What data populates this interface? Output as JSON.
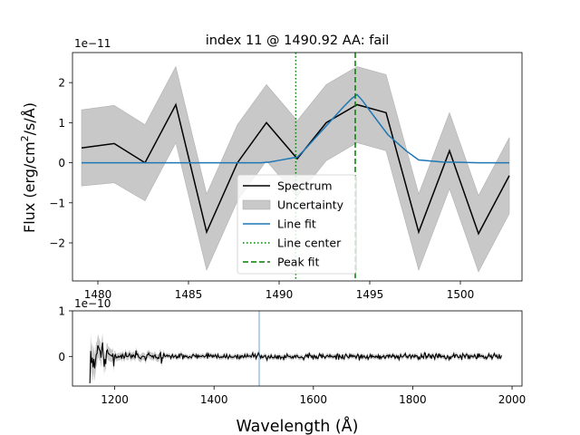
{
  "chart_data": [
    {
      "type": "line",
      "title": "index 11 @ 1490.92 AA: fail",
      "xlabel": "",
      "ylabel": "Flux (erg/cm$^2$/s/$\\AA$)",
      "ylabel_parts": {
        "pre": "Flux (erg/cm",
        "sup": "2",
        "post": "/s/Å)"
      },
      "offset_text": "1e−11",
      "xlim": [
        1478.6,
        1503.4
      ],
      "ylim": [
        -2.95,
        2.75
      ],
      "xticks": [
        1480,
        1485,
        1490,
        1495,
        1500
      ],
      "xtick_labels": [
        "1480",
        "1485",
        "1490",
        "1495",
        "1500"
      ],
      "yticks": [
        -2,
        -1,
        0,
        1,
        2
      ],
      "ytick_labels": [
        "−2",
        "−1",
        "0",
        "1",
        "2"
      ],
      "grid": false,
      "legend_position": "lower-center",
      "legend": [
        "Spectrum",
        "Uncertainty",
        "Line fit",
        "Line center",
        "Peak fit"
      ],
      "x": [
        1479.1,
        1480.9,
        1482.6,
        1484.3,
        1486.0,
        1487.7,
        1489.3,
        1491.0,
        1492.6,
        1494.3,
        1495.9,
        1497.7,
        1499.4,
        1501.0,
        1502.7
      ],
      "series": [
        {
          "name": "Spectrum",
          "color": "#000000",
          "style": "solid",
          "values": [
            0.37,
            0.48,
            0.0,
            1.45,
            -1.73,
            0.0,
            1.0,
            0.1,
            1.0,
            1.45,
            1.25,
            -1.73,
            0.3,
            -1.77,
            -0.32
          ]
        },
        {
          "name": "Uncertainty",
          "color": "#c8c8c8",
          "style": "band",
          "lower": [
            -0.58,
            -0.5,
            -0.95,
            0.5,
            -2.68,
            -0.95,
            0.05,
            -0.85,
            0.05,
            0.5,
            0.3,
            -2.68,
            -0.65,
            -2.72,
            -1.27
          ],
          "upper": [
            1.32,
            1.43,
            0.95,
            2.4,
            -0.78,
            0.95,
            1.95,
            1.05,
            1.95,
            2.4,
            2.2,
            -0.78,
            1.25,
            -0.82,
            0.63
          ]
        },
        {
          "name": "Line fit",
          "color": "#1f77b4",
          "style": "solid",
          "x": [
            1479.1,
            1481.0,
            1483.0,
            1485.0,
            1487.0,
            1489.0,
            1489.5,
            1490.0,
            1490.5,
            1491.0,
            1491.5,
            1492.0,
            1492.5,
            1493.0,
            1493.5,
            1494.0,
            1494.3,
            1494.6,
            1495.0,
            1495.5,
            1496.0,
            1496.5,
            1497.0,
            1497.7,
            1499.0,
            1501.0,
            1502.7
          ],
          "values": [
            0,
            0,
            0,
            0,
            0,
            0,
            0.02,
            0.06,
            0.1,
            0.14,
            0.37,
            0.62,
            0.87,
            1.12,
            1.37,
            1.6,
            1.7,
            1.55,
            1.3,
            1.0,
            0.7,
            0.5,
            0.3,
            0.07,
            0.02,
            0,
            0
          ]
        },
        {
          "name": "Line center",
          "color": "#008000",
          "style": "dotted",
          "vline": 1490.92
        },
        {
          "name": "Peak fit",
          "color": "#008000",
          "style": "dashed",
          "vline": 1494.2
        }
      ]
    },
    {
      "type": "line",
      "title": "",
      "xlabel": "Wavelength ($\\AA$)",
      "xlabel_text": "Wavelength (Å)",
      "ylabel": "",
      "offset_text": "1e−10",
      "xlim": [
        1115,
        2020
      ],
      "ylim": [
        -0.65,
        1.0
      ],
      "xticks": [
        1200,
        1400,
        1600,
        1800,
        2000
      ],
      "xtick_labels": [
        "1200",
        "1400",
        "1600",
        "1800",
        "2000"
      ],
      "yticks": [
        0,
        1
      ],
      "ytick_labels": [
        "0",
        "1"
      ],
      "grid": false,
      "series": [
        {
          "name": "",
          "color": "#000000",
          "style": "noisy-spectrum",
          "x_range": [
            1150,
            1980
          ]
        },
        {
          "name": "",
          "color": "#1f77b4",
          "style": "vline",
          "vline": 1490.92
        }
      ]
    }
  ]
}
